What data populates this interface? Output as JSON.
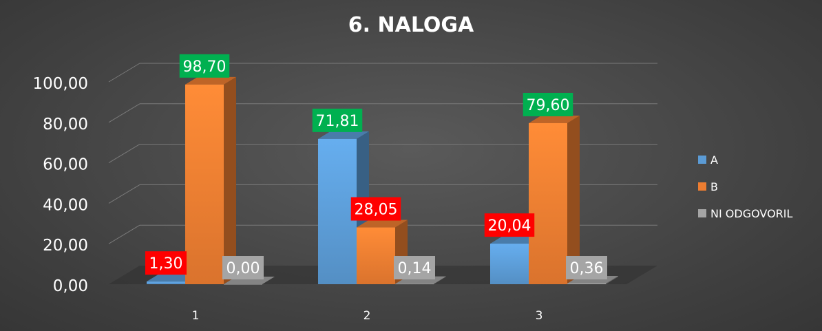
{
  "chart_data": {
    "type": "bar",
    "title": "6. NALOGA",
    "categories": [
      "1",
      "2",
      "3"
    ],
    "series": [
      {
        "name": "A",
        "values": [
          1.3,
          71.81,
          20.04
        ],
        "color": "#5b9bd5"
      },
      {
        "name": "B",
        "values": [
          98.7,
          28.05,
          79.6
        ],
        "color": "#ed7d31"
      },
      {
        "name": "NI ODGOVORIL",
        "values": [
          0.0,
          0.14,
          0.36
        ],
        "color": "#a5a5a5"
      }
    ],
    "ylim": [
      0,
      100
    ],
    "yticks": [
      "0,00",
      "20,00",
      "40,00",
      "60,00",
      "80,00",
      "100,00"
    ],
    "data_labels": [
      [
        "1,30",
        "71,81",
        "20,04"
      ],
      [
        "98,70",
        "28,05",
        "79,60"
      ],
      [
        "0,00",
        "0,14",
        "0,36"
      ]
    ],
    "label_colors": {
      "high": "#00b050",
      "low": "#ff0000",
      "none": "#a5a5a5"
    },
    "grid": true,
    "legend": "right",
    "style": "3d-clustered-column"
  }
}
